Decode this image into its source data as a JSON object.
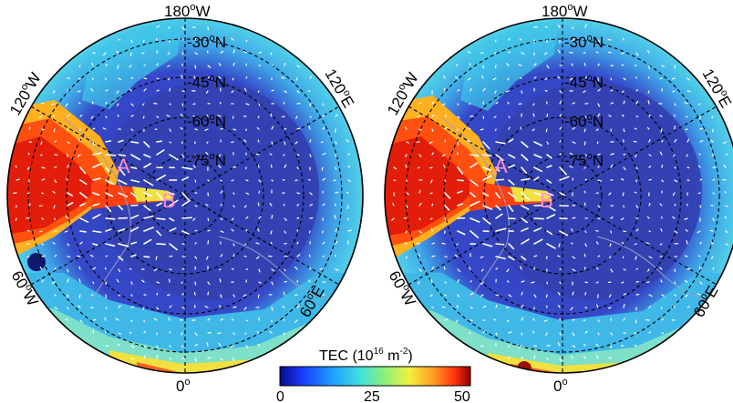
{
  "maps": [
    {
      "name": "left",
      "longitude_labels": [
        "180",
        "120",
        "120",
        "60",
        "60",
        "0"
      ],
      "longitude_suffixes": [
        "W",
        "W",
        "E",
        "W",
        "E",
        ""
      ],
      "latitude_labels": [
        "30",
        "45",
        "60",
        "75"
      ],
      "latitude_suffix": "N",
      "degree_mark": "o",
      "points": [
        "A",
        "B"
      ]
    },
    {
      "name": "right",
      "longitude_labels": [
        "180",
        "120",
        "120",
        "60",
        "60",
        "0"
      ],
      "longitude_suffixes": [
        "W",
        "W",
        "E",
        "W",
        "E",
        ""
      ],
      "latitude_labels": [
        "30",
        "45",
        "60",
        "75"
      ],
      "latitude_suffix": "N",
      "degree_mark": "o",
      "points": [
        "A",
        "B"
      ]
    }
  ],
  "colorbar": {
    "title_prefix": "TEC (10",
    "title_exp1": "16",
    "title_mid": " m",
    "title_exp2": "-2",
    "title_suffix": ")",
    "ticks": [
      "0",
      "25",
      "50"
    ],
    "range": [
      0,
      50
    ],
    "colors": [
      "#0a0a8a",
      "#1a3cff",
      "#1ea0ff",
      "#3fe0e0",
      "#8cf07a",
      "#f0f040",
      "#ffa020",
      "#ff3010",
      "#8a0000"
    ]
  },
  "colors": {
    "ocean_background": "#3040b8",
    "high_latitude_band": "#4a66e0",
    "coastline": "#9aa0c0",
    "grid": "#000000",
    "arrow": "#ffffff",
    "point_label": "#ff8fc8"
  }
}
